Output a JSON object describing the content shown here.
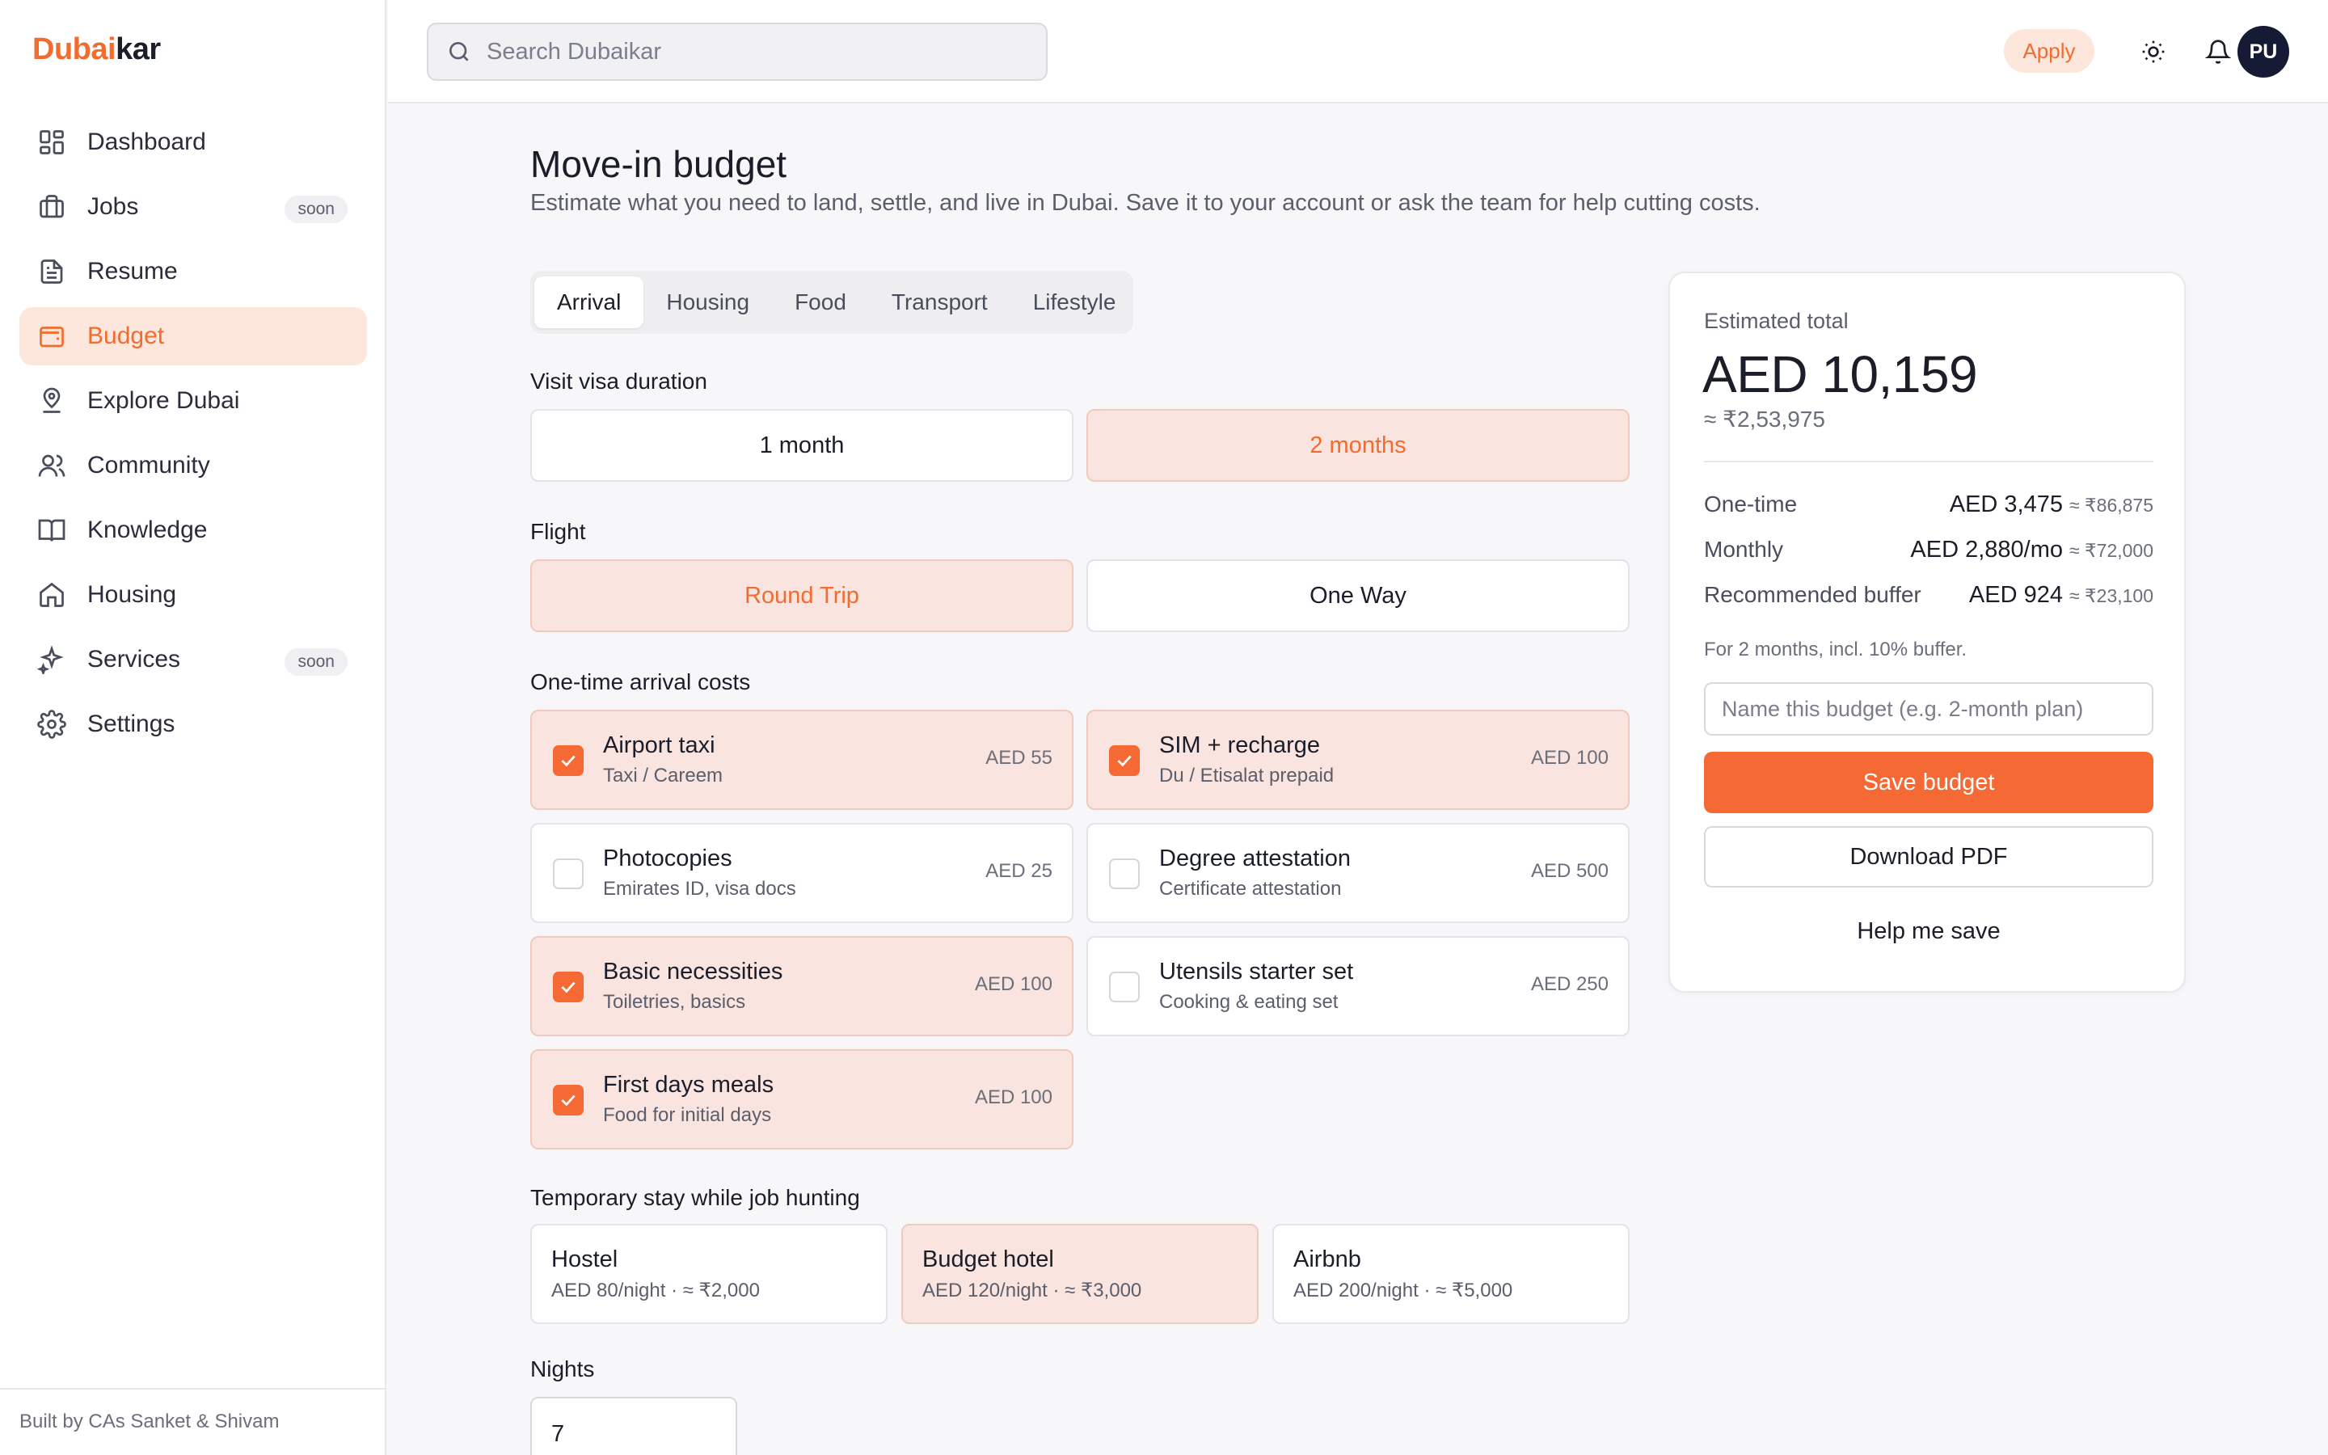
{
  "brand": {
    "accent": "Dubai",
    "rest": "kar"
  },
  "sidebar": {
    "items": [
      {
        "label": "Dashboard",
        "icon": "dashboard-icon"
      },
      {
        "label": "Jobs",
        "icon": "briefcase-icon",
        "badge": "soon"
      },
      {
        "label": "Resume",
        "icon": "document-icon"
      },
      {
        "label": "Budget",
        "icon": "wallet-icon",
        "active": true
      },
      {
        "label": "Explore Dubai",
        "icon": "map-pin-icon"
      },
      {
        "label": "Community",
        "icon": "users-icon"
      },
      {
        "label": "Knowledge",
        "icon": "book-icon"
      },
      {
        "label": "Housing",
        "icon": "home-icon"
      },
      {
        "label": "Services",
        "icon": "sparkles-icon",
        "badge": "soon"
      },
      {
        "label": "Settings",
        "icon": "gear-icon"
      }
    ],
    "footer": "Built by CAs Sanket & Shivam"
  },
  "topbar": {
    "search_placeholder": "Search Dubaikar",
    "apply_label": "Apply",
    "avatar_initials": "PU"
  },
  "page": {
    "title": "Move-in budget",
    "subtitle": "Estimate what you need to land, settle, and live in Dubai. Save it to your account or ask the team for help cutting costs."
  },
  "tabs": [
    "Arrival",
    "Housing",
    "Food",
    "Transport",
    "Lifestyle"
  ],
  "visa": {
    "label": "Visit visa duration",
    "options": [
      "1 month",
      "2 months"
    ],
    "selected": "2 months"
  },
  "flight": {
    "label": "Flight",
    "options": [
      "Round Trip",
      "One Way"
    ],
    "selected": "Round Trip"
  },
  "arrival_costs": {
    "label": "One-time arrival costs",
    "items": [
      {
        "title": "Airport taxi",
        "sub": "Taxi / Careem",
        "price": "AED 55",
        "checked": true
      },
      {
        "title": "SIM + recharge",
        "sub": "Du / Etisalat prepaid",
        "price": "AED 100",
        "checked": true
      },
      {
        "title": "Photocopies",
        "sub": "Emirates ID, visa docs",
        "price": "AED 25",
        "checked": false
      },
      {
        "title": "Degree attestation",
        "sub": "Certificate attestation",
        "price": "AED 500",
        "checked": false
      },
      {
        "title": "Basic necessities",
        "sub": "Toiletries, basics",
        "price": "AED 100",
        "checked": true
      },
      {
        "title": "Utensils starter set",
        "sub": "Cooking & eating set",
        "price": "AED 250",
        "checked": false
      },
      {
        "title": "First days meals",
        "sub": "Food for initial days",
        "price": "AED 100",
        "checked": true
      }
    ]
  },
  "stay": {
    "label": "Temporary stay while job hunting",
    "options": [
      {
        "title": "Hostel",
        "sub": "AED 80/night · ≈ ₹2,000"
      },
      {
        "title": "Budget hotel",
        "sub": "AED 120/night · ≈ ₹3,000",
        "selected": true
      },
      {
        "title": "Airbnb",
        "sub": "AED 200/night · ≈ ₹5,000"
      }
    ]
  },
  "nights": {
    "label": "Nights",
    "value": "7"
  },
  "summary": {
    "est_label": "Estimated total",
    "est_total": "AED 10,159",
    "est_inr": "≈ ₹2,53,975",
    "rows": [
      {
        "label": "One-time",
        "value": "AED 3,475",
        "inr": "≈ ₹86,875"
      },
      {
        "label": "Monthly",
        "value": "AED 2,880/mo",
        "inr": "≈ ₹72,000"
      },
      {
        "label": "Recommended buffer",
        "value": "AED 924",
        "inr": "≈ ₹23,100"
      }
    ],
    "note": "For 2 months, incl. 10% buffer.",
    "name_placeholder": "Name this budget (e.g. 2-month plan)",
    "save_label": "Save budget",
    "pdf_label": "Download PDF",
    "help_label": "Help me save"
  },
  "colors": {
    "accent": "#f26b2f",
    "selected_bg": "#f9e4df",
    "avatar_bg": "#151a35"
  }
}
